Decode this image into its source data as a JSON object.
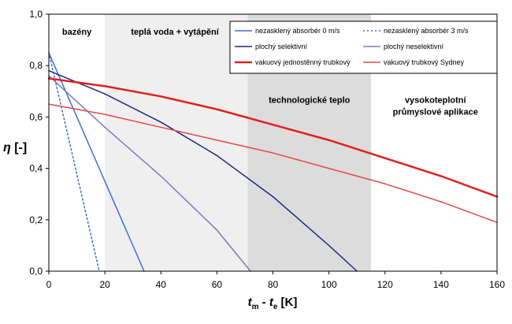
{
  "chart_data": {
    "type": "line",
    "xlabel_parts": [
      "t",
      "m",
      " - t",
      "e",
      " [K]"
    ],
    "ylabel_parts": [
      "η",
      " [-]"
    ],
    "xlim": [
      0,
      160
    ],
    "ylim": [
      0,
      1
    ],
    "x_ticks": [
      "0",
      "20",
      "40",
      "60",
      "80",
      "100",
      "120",
      "140",
      "160"
    ],
    "y_ticks": [
      "0,0",
      "0,2",
      "0,4",
      "0,6",
      "0,8",
      "1,0"
    ],
    "x_tick_values": [
      0,
      20,
      40,
      60,
      80,
      100,
      120,
      140,
      160
    ],
    "y_tick_values": [
      0,
      0.2,
      0.4,
      0.6,
      0.8,
      1.0
    ],
    "grid": false,
    "legend_position": "top-right",
    "regions": [
      {
        "label_lines": [
          "bazény"
        ],
        "x_range": [
          0,
          20
        ],
        "color": "#ffffff",
        "label_x": 10,
        "label_y": 0.92
      },
      {
        "label_lines": [
          "teplá voda + vytápění"
        ],
        "x_range": [
          20,
          71
        ],
        "color": "#efefef",
        "label_x": 45,
        "label_y": 0.92
      },
      {
        "label_lines": [
          "technologické teplo"
        ],
        "x_range": [
          71,
          115
        ],
        "color": "#dcdcdc",
        "label_x": 93,
        "label_y": 0.655
      },
      {
        "label_lines": [
          "vysokoteplotní",
          "průmyslové aplikace"
        ],
        "x_range": [
          115,
          160
        ],
        "color": "#ffffff",
        "label_x": 138,
        "label_y": 0.655
      }
    ],
    "series": [
      {
        "name": "nezasklený absorbér 0 m/s",
        "color": "#3f6fd4",
        "dash": "solid",
        "width": 1.5,
        "x": [
          0,
          34
        ],
        "y": [
          0.85,
          0.0
        ]
      },
      {
        "name": "nezasklený absorbér 3 m/s",
        "color": "#3f6fd4",
        "dash": "dotted",
        "width": 1.5,
        "x": [
          0,
          18
        ],
        "y": [
          0.85,
          0.0
        ]
      },
      {
        "name": "plochý selektivní",
        "color": "#1f2a7a",
        "dash": "solid",
        "width": 1.5,
        "x": [
          0,
          20,
          40,
          60,
          80,
          100,
          110
        ],
        "y": [
          0.78,
          0.69,
          0.58,
          0.45,
          0.29,
          0.1,
          0.0
        ]
      },
      {
        "name": "plochý neselektivní",
        "color": "#7c7cb8",
        "dash": "solid",
        "width": 1.5,
        "x": [
          0,
          20,
          40,
          60,
          72
        ],
        "y": [
          0.76,
          0.56,
          0.37,
          0.16,
          0.0
        ]
      },
      {
        "name": "vakuový jednostěnný trubkový",
        "color": "#e02020",
        "dash": "solid",
        "width": 2.5,
        "x": [
          0,
          20,
          40,
          60,
          80,
          100,
          120,
          140,
          160
        ],
        "y": [
          0.75,
          0.72,
          0.68,
          0.63,
          0.57,
          0.51,
          0.44,
          0.37,
          0.29
        ]
      },
      {
        "name": "vakuový trubkový Sydney",
        "color": "#e24a4a",
        "dash": "solid",
        "width": 1.5,
        "x": [
          0,
          20,
          40,
          60,
          80,
          100,
          120,
          140,
          160
        ],
        "y": [
          0.65,
          0.61,
          0.56,
          0.51,
          0.46,
          0.4,
          0.34,
          0.27,
          0.19
        ]
      }
    ]
  }
}
